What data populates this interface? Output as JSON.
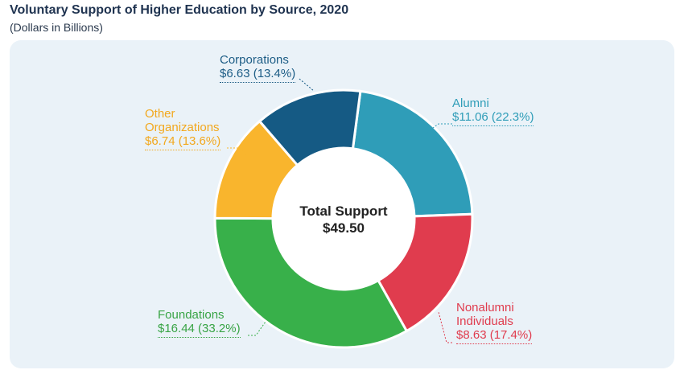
{
  "header": {
    "title": "Voluntary Support of Higher Education by Source, 2020",
    "subtitle": "(Dollars in Billions)"
  },
  "chart_data": {
    "type": "pie",
    "variant": "donut",
    "center_label": "Total Support",
    "center_value": "$49.50",
    "total": 49.5,
    "slices": [
      {
        "name": "Alumni",
        "value": 11.06,
        "percent": 22.3,
        "value_label": "$11.06 (22.3%)",
        "color": "#2f9db8"
      },
      {
        "name": "Nonalumni Individuals",
        "value": 8.63,
        "percent": 17.4,
        "value_label": "$8.63 (17.4%)",
        "color": "#e03c4e"
      },
      {
        "name": "Foundations",
        "value": 16.44,
        "percent": 33.2,
        "value_label": "$16.44 (33.2%)",
        "color": "#38b04a"
      },
      {
        "name": "Other Organizations",
        "value": 6.74,
        "percent": 13.6,
        "value_label": "$6.74 (13.6%)",
        "color": "#f9b52d"
      },
      {
        "name": "Corporations",
        "value": 6.63,
        "percent": 13.4,
        "value_label": "$6.63 (13.4%)",
        "color": "#155a84"
      }
    ],
    "labels": {
      "alumni": {
        "name": "Alumni",
        "value": "$11.06 (22.3%)"
      },
      "nonalumni": {
        "name_line1": "Nonalumni",
        "name_line2": "Individuals",
        "value": "$8.63 (17.4%)"
      },
      "foundations": {
        "name": "Foundations",
        "value": "$16.44 (33.2%)"
      },
      "other": {
        "name_line1": "Other",
        "name_line2": "Organizations",
        "value": "$6.74 (13.6%)"
      },
      "corporations": {
        "name": "Corporations",
        "value": "$6.63 (13.4%)"
      }
    }
  }
}
